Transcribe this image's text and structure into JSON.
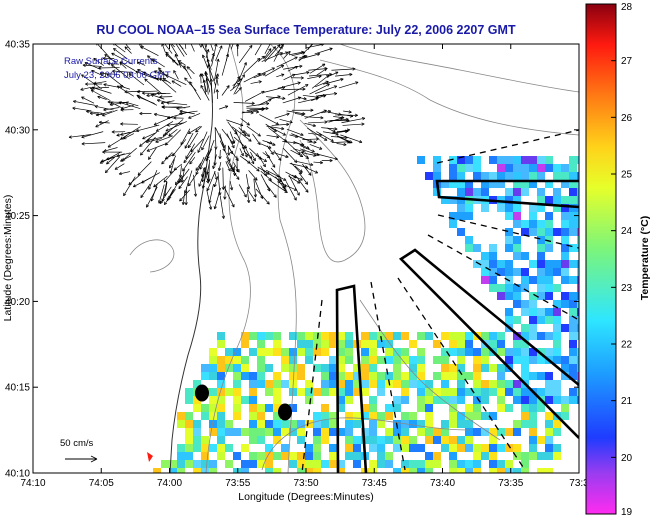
{
  "title": "RU COOL  NOAA–15  Sea Surface Temperature:  July 22, 2006 2207 GMT",
  "overlay": {
    "line1": "Raw Surface Currents",
    "line2": "July 23, 2006 00:00 GMT"
  },
  "axes": {
    "xlabel": "Longitude (Degrees:Minutes)",
    "ylabel": "Latitude (Degrees:Minutes)",
    "xticks": [
      "74:10",
      "74:05",
      "74:00",
      "73:55",
      "73:50",
      "73:45",
      "73:40",
      "73:35",
      "73:3"
    ],
    "yticks": [
      "40:35",
      "40:30",
      "40:25",
      "40:20",
      "40:15",
      "40:10"
    ]
  },
  "scale_arrow": {
    "label": "50 cm/s"
  },
  "colorbar": {
    "label": "Temperature (°C)",
    "ticks": [
      "28",
      "27",
      "26",
      "25",
      "24",
      "23",
      "22",
      "21",
      "20",
      "19"
    ],
    "min": 19,
    "max": 28
  }
}
